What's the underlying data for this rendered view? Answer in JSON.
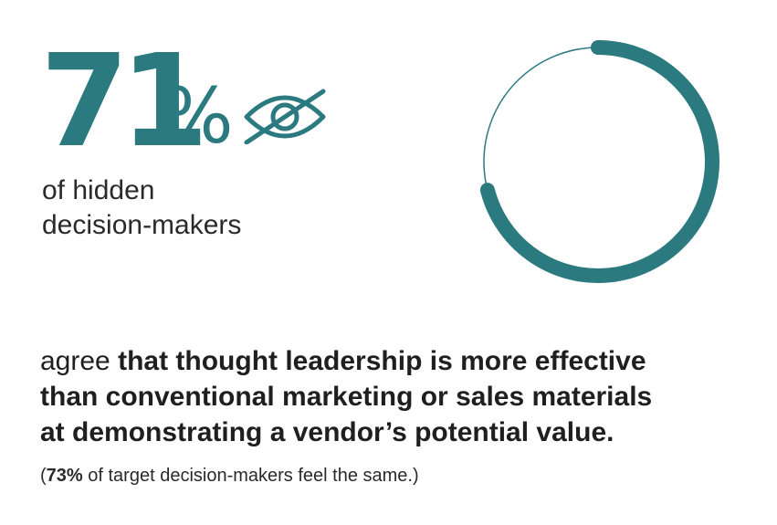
{
  "stat": {
    "number": "71",
    "percent_sign": "%",
    "subtitle_line1": "of hidden",
    "subtitle_line2": "decision-makers"
  },
  "icon": "eye-slash-icon",
  "ring": {
    "value_percent": 71,
    "color": "#2b7a7f"
  },
  "body": {
    "lead": "agree ",
    "bold_line1": "that thought leadership is more effective",
    "bold_line2": "than conventional marketing or sales materials",
    "bold_line3": "at demonstrating a vendor’s potential value."
  },
  "note": {
    "open": "(",
    "bold_value": "73%",
    "rest": " of target decision-makers feel the same.)"
  },
  "colors": {
    "accent": "#2b7a7f",
    "text": "#1f1f1f"
  }
}
